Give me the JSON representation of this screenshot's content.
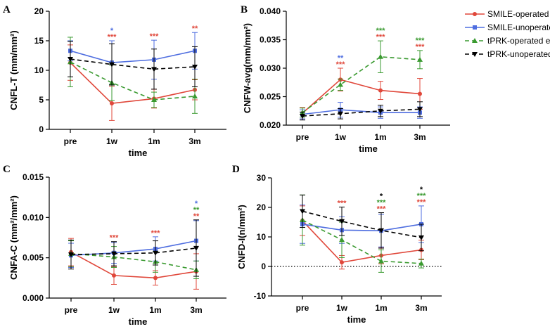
{
  "colors": {
    "smile_op": "#e0473a",
    "smile_unop": "#4f6ee0",
    "tprk_op": "#3a9a30",
    "tprk_unop": "#000000"
  },
  "legend": [
    {
      "name": "SMILE-operated eye",
      "color": "#e0473a",
      "dash": false,
      "marker": "circle"
    },
    {
      "name": "SMILE-unoperated eye",
      "color": "#4f6ee0",
      "dash": false,
      "marker": "square"
    },
    {
      "name": "tPRK-operated eye",
      "color": "#3a9a30",
      "dash": true,
      "marker": "triangle-up"
    },
    {
      "name": "tPRK-unoperated eye",
      "color": "#000000",
      "dash": true,
      "marker": "triangle-down"
    }
  ],
  "chart_data": [
    {
      "panel": "A",
      "type": "line",
      "xlabel": "time",
      "ylabel": "CNFL-T (mm/mm²)",
      "categories": [
        "pre",
        "1w",
        "1m",
        "3m"
      ],
      "ylim": [
        0,
        20
      ],
      "yticks": [
        0,
        5,
        10,
        15,
        20
      ],
      "ytick_labels": [
        "0",
        "5",
        "10",
        "15",
        "20"
      ],
      "series": [
        {
          "name": "SMILE-operated eye",
          "values": [
            11.3,
            4.4,
            5.2,
            6.7
          ],
          "err": [
            3.0,
            2.9,
            1.6,
            1.7
          ]
        },
        {
          "name": "SMILE-unoperated eye",
          "values": [
            13.3,
            11.3,
            11.8,
            13.3
          ],
          "err": [
            1.7,
            3.7,
            3.3,
            3.1
          ]
        },
        {
          "name": "tPRK-operated eye",
          "values": [
            11.4,
            7.9,
            5.0,
            5.6
          ],
          "err": [
            4.2,
            3.0,
            1.3,
            2.9
          ]
        },
        {
          "name": "tPRK-unoperated eye",
          "values": [
            11.9,
            11.0,
            10.2,
            10.6
          ],
          "err": [
            3.0,
            3.5,
            3.4,
            3.4
          ]
        }
      ],
      "annotations": [
        {
          "x": "1w",
          "lines": [
            {
              "text": "*",
              "color": "#4f6ee0"
            },
            {
              "text": "***",
              "color": "#e0473a"
            }
          ]
        },
        {
          "x": "1m",
          "lines": [
            {
              "text": "***",
              "color": "#e0473a"
            }
          ]
        },
        {
          "x": "3m",
          "lines": [
            {
              "text": "**",
              "color": "#e0473a"
            }
          ]
        }
      ]
    },
    {
      "panel": "B",
      "type": "line",
      "xlabel": "time",
      "ylabel": "CNFW-avg(mm/mm²)",
      "categories": [
        "pre",
        "1w",
        "1m",
        "3m"
      ],
      "ylim": [
        0.02,
        0.04
      ],
      "yticks": [
        0.02,
        0.025,
        0.03,
        0.035,
        0.04
      ],
      "ytick_labels": [
        "0.020",
        "0.025",
        "0.030",
        "0.035",
        "0.040"
      ],
      "series": [
        {
          "name": "SMILE-operated eye",
          "values": [
            0.0221,
            0.028,
            0.0261,
            0.0255
          ],
          "err": [
            0.001,
            0.002,
            0.0016,
            0.0027
          ]
        },
        {
          "name": "SMILE-unoperated eye",
          "values": [
            0.0219,
            0.0227,
            0.0222,
            0.0222
          ],
          "err": [
            0.0008,
            0.0013,
            0.001,
            0.001
          ]
        },
        {
          "name": "tPRK-operated eye",
          "values": [
            0.0222,
            0.0271,
            0.032,
            0.0315
          ],
          "err": [
            0.0008,
            0.001,
            0.0028,
            0.0016
          ]
        },
        {
          "name": "tPRK-unoperated eye",
          "values": [
            0.0216,
            0.022,
            0.0225,
            0.0228
          ],
          "err": [
            0.0007,
            0.0009,
            0.001,
            0.0013
          ]
        }
      ],
      "annotations": [
        {
          "x": "1w",
          "lines": [
            {
              "text": "**",
              "color": "#4f6ee0"
            },
            {
              "text": "***",
              "color": "#e0473a"
            }
          ]
        },
        {
          "x": "1m",
          "lines": [
            {
              "text": "***",
              "color": "#3a9a30"
            },
            {
              "text": "***",
              "color": "#e0473a"
            }
          ]
        },
        {
          "x": "3m",
          "lines": [
            {
              "text": "***",
              "color": "#3a9a30"
            },
            {
              "text": "***",
              "color": "#e0473a"
            }
          ]
        }
      ]
    },
    {
      "panel": "C",
      "type": "line",
      "xlabel": "time",
      "ylabel": "CNFA-C (mm²/mm²)",
      "categories": [
        "pre",
        "1w",
        "1m",
        "3m"
      ],
      "ylim": [
        0,
        0.015
      ],
      "yticks": [
        0,
        0.005,
        0.01,
        0.015
      ],
      "ytick_labels": [
        "0.000",
        "0.005",
        "0.010",
        "0.015"
      ],
      "series": [
        {
          "name": "SMILE-operated eye",
          "values": [
            0.0057,
            0.0028,
            0.0025,
            0.0033
          ],
          "err": [
            0.0017,
            0.0011,
            0.0009,
            0.0022
          ]
        },
        {
          "name": "SMILE-unoperated eye",
          "values": [
            0.0053,
            0.0056,
            0.0061,
            0.0071
          ],
          "err": [
            0.0015,
            0.0013,
            0.0015,
            0.0025
          ]
        },
        {
          "name": "tPRK-operated eye",
          "values": [
            0.0055,
            0.0051,
            0.0045,
            0.0035
          ],
          "err": [
            0.0016,
            0.0013,
            0.0013,
            0.0011
          ]
        },
        {
          "name": "tPRK-unoperated eye",
          "values": [
            0.0054,
            0.0055,
            0.0056,
            0.0062
          ],
          "err": [
            0.0018,
            0.0015,
            0.0015,
            0.0035
          ]
        }
      ],
      "annotations": [
        {
          "x": "1w",
          "lines": [
            {
              "text": "***",
              "color": "#e0473a"
            }
          ]
        },
        {
          "x": "1m",
          "lines": [
            {
              "text": "***",
              "color": "#e0473a"
            }
          ]
        },
        {
          "x": "3m",
          "lines": [
            {
              "text": "*",
              "color": "#4f6ee0"
            },
            {
              "text": "**",
              "color": "#3a9a30"
            },
            {
              "text": "**",
              "color": "#e0473a"
            }
          ]
        }
      ]
    },
    {
      "panel": "D",
      "type": "line",
      "xlabel": "time",
      "ylabel": "CNFD-I(n/mm²)",
      "categories": [
        "pre",
        "1w",
        "1m",
        "3m"
      ],
      "ylim": [
        -10,
        30
      ],
      "yticks": [
        -10,
        0,
        10,
        20,
        30
      ],
      "ytick_labels": [
        "-10",
        "0",
        "10",
        "20",
        "30"
      ],
      "reference_line": 0,
      "series": [
        {
          "name": "SMILE-operated eye",
          "values": [
            15.5,
            1.4,
            3.7,
            5.6
          ],
          "err": [
            5.0,
            2.3,
            2.8,
            3.3
          ]
        },
        {
          "name": "SMILE-unoperated eye",
          "values": [
            14.3,
            12.3,
            12.1,
            14.3
          ],
          "err": [
            6.5,
            4.5,
            5.5,
            6.2
          ]
        },
        {
          "name": "tPRK-operated eye",
          "values": [
            15.7,
            9.0,
            1.8,
            1.0
          ],
          "err": [
            8.5,
            6.0,
            3.8,
            1.5
          ]
        },
        {
          "name": "tPRK-unoperated eye",
          "values": [
            18.7,
            15.3,
            12.2,
            9.8
          ],
          "err": [
            5.5,
            4.8,
            6.0,
            4.5
          ]
        }
      ],
      "annotations": [
        {
          "x": "1w",
          "lines": [
            {
              "text": "***",
              "color": "#e0473a"
            }
          ]
        },
        {
          "x": "1m",
          "lines": [
            {
              "text": "*",
              "color": "#000000"
            },
            {
              "text": "***",
              "color": "#3a9a30"
            },
            {
              "text": "***",
              "color": "#e0473a"
            }
          ]
        },
        {
          "x": "3m",
          "lines": [
            {
              "text": "*",
              "color": "#000000"
            },
            {
              "text": "***",
              "color": "#3a9a30"
            },
            {
              "text": "***",
              "color": "#e0473a"
            }
          ]
        }
      ]
    }
  ]
}
